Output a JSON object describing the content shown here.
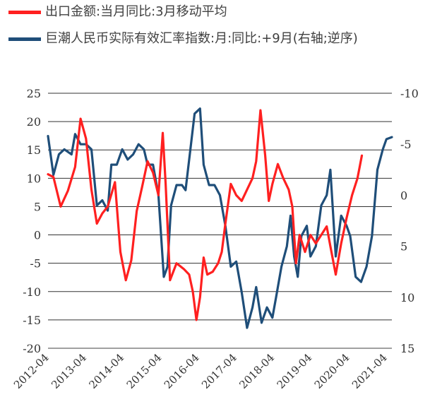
{
  "chart_data": {
    "type": "line",
    "title": "",
    "legend_position": "top",
    "grid": true,
    "colors": {
      "export": "#ff2020",
      "reer": "#1f4e79"
    },
    "x_tick_labels": [
      "2012-04",
      "2013-04",
      "2014-04",
      "2015-04",
      "2016-04",
      "2017-04",
      "2018-04",
      "2019-04",
      "2020-04",
      "2021-04"
    ],
    "y_left": {
      "range": [
        -20,
        25
      ],
      "ticks": [
        "25",
        "20",
        "15",
        "10",
        "5",
        "0",
        "-5",
        "-10",
        "-15",
        "-20"
      ]
    },
    "y_right": {
      "range": [
        -10,
        15
      ],
      "inverted": true,
      "ticks": [
        "-10",
        "-5",
        "0",
        "5",
        "10",
        "15"
      ]
    },
    "series": [
      {
        "name": "出口金额:当月同比:3月移动平均",
        "axis": "left",
        "color": "#ff2020",
        "points": [
          [
            2012.25,
            10.7
          ],
          [
            2012.4,
            10.2
          ],
          [
            2012.6,
            5
          ],
          [
            2012.8,
            7.8
          ],
          [
            2013.0,
            12
          ],
          [
            2013.15,
            20.5
          ],
          [
            2013.3,
            17
          ],
          [
            2013.45,
            8
          ],
          [
            2013.6,
            2
          ],
          [
            2013.75,
            3.8
          ],
          [
            2013.9,
            5
          ],
          [
            2014.1,
            9.3
          ],
          [
            2014.25,
            -3
          ],
          [
            2014.4,
            -8
          ],
          [
            2014.55,
            -4.5
          ],
          [
            2014.7,
            4.2
          ],
          [
            2014.85,
            8.5
          ],
          [
            2015.0,
            13
          ],
          [
            2015.15,
            11
          ],
          [
            2015.3,
            7
          ],
          [
            2015.42,
            18
          ],
          [
            2015.5,
            9
          ],
          [
            2015.62,
            -8
          ],
          [
            2015.8,
            -5
          ],
          [
            2016.0,
            -6
          ],
          [
            2016.15,
            -7
          ],
          [
            2016.25,
            -10
          ],
          [
            2016.35,
            -15
          ],
          [
            2016.45,
            -11
          ],
          [
            2016.55,
            -4
          ],
          [
            2016.65,
            -7
          ],
          [
            2016.8,
            -6.5
          ],
          [
            2016.95,
            -5
          ],
          [
            2017.05,
            -3
          ],
          [
            2017.15,
            2
          ],
          [
            2017.3,
            9
          ],
          [
            2017.45,
            7
          ],
          [
            2017.6,
            6
          ],
          [
            2017.75,
            8
          ],
          [
            2017.9,
            10
          ],
          [
            2018.0,
            13
          ],
          [
            2018.12,
            22
          ],
          [
            2018.25,
            14
          ],
          [
            2018.35,
            6
          ],
          [
            2018.45,
            9
          ],
          [
            2018.6,
            12.5
          ],
          [
            2018.75,
            10
          ],
          [
            2018.9,
            8
          ],
          [
            2019.0,
            5
          ],
          [
            2019.1,
            -5
          ],
          [
            2019.2,
            0
          ],
          [
            2019.35,
            -3
          ],
          [
            2019.5,
            0
          ],
          [
            2019.65,
            -1.5
          ],
          [
            2019.8,
            0
          ],
          [
            2019.95,
            1.5
          ],
          [
            2020.05,
            -2
          ],
          [
            2020.2,
            -7
          ],
          [
            2020.35,
            -1.5
          ],
          [
            2020.5,
            3
          ],
          [
            2020.65,
            7
          ],
          [
            2020.8,
            10
          ],
          [
            2020.92,
            14
          ]
        ]
      },
      {
        "name": "巨潮人民币实际有效汇率指数:月:同比:+9月(右轴;逆序)",
        "axis": "right",
        "color": "#1f4e79",
        "points": [
          [
            2012.25,
            -5.8
          ],
          [
            2012.4,
            -2
          ],
          [
            2012.55,
            -4
          ],
          [
            2012.7,
            -4.5
          ],
          [
            2012.9,
            -4
          ],
          [
            2013.0,
            -6
          ],
          [
            2013.15,
            -5
          ],
          [
            2013.3,
            -5
          ],
          [
            2013.45,
            -4.5
          ],
          [
            2013.6,
            1
          ],
          [
            2013.75,
            0.5
          ],
          [
            2013.9,
            1.5
          ],
          [
            2014.0,
            -3
          ],
          [
            2014.15,
            -3
          ],
          [
            2014.3,
            -4.5
          ],
          [
            2014.45,
            -3.5
          ],
          [
            2014.6,
            -4
          ],
          [
            2014.75,
            -5
          ],
          [
            2014.9,
            -4.5
          ],
          [
            2015.0,
            -3
          ],
          [
            2015.15,
            -3
          ],
          [
            2015.3,
            0
          ],
          [
            2015.45,
            8
          ],
          [
            2015.55,
            7
          ],
          [
            2015.65,
            1
          ],
          [
            2015.8,
            -1
          ],
          [
            2015.95,
            -1
          ],
          [
            2016.05,
            -0.5
          ],
          [
            2016.2,
            -5
          ],
          [
            2016.3,
            -8
          ],
          [
            2016.45,
            -8.5
          ],
          [
            2016.55,
            -3
          ],
          [
            2016.7,
            -1
          ],
          [
            2016.85,
            -1
          ],
          [
            2017.0,
            0
          ],
          [
            2017.15,
            3
          ],
          [
            2017.3,
            7
          ],
          [
            2017.45,
            6.5
          ],
          [
            2017.6,
            9.5
          ],
          [
            2017.75,
            13
          ],
          [
            2017.9,
            11
          ],
          [
            2018.0,
            9
          ],
          [
            2018.15,
            12.5
          ],
          [
            2018.3,
            11
          ],
          [
            2018.45,
            12
          ],
          [
            2018.55,
            10
          ],
          [
            2018.7,
            7
          ],
          [
            2018.85,
            5
          ],
          [
            2018.95,
            2
          ],
          [
            2019.05,
            6
          ],
          [
            2019.15,
            8
          ],
          [
            2019.25,
            4
          ],
          [
            2019.4,
            3
          ],
          [
            2019.5,
            6
          ],
          [
            2019.65,
            5
          ],
          [
            2019.8,
            1
          ],
          [
            2019.95,
            0
          ],
          [
            2020.05,
            -2.5
          ],
          [
            2020.2,
            6
          ],
          [
            2020.35,
            2
          ],
          [
            2020.5,
            3
          ],
          [
            2020.6,
            4
          ],
          [
            2020.75,
            8
          ],
          [
            2020.9,
            8.5
          ],
          [
            2021.05,
            7
          ],
          [
            2021.2,
            4
          ],
          [
            2021.35,
            -2.5
          ],
          [
            2021.5,
            -4.5
          ],
          [
            2021.6,
            -5.5
          ],
          [
            2021.75,
            -5.7
          ]
        ]
      }
    ]
  }
}
